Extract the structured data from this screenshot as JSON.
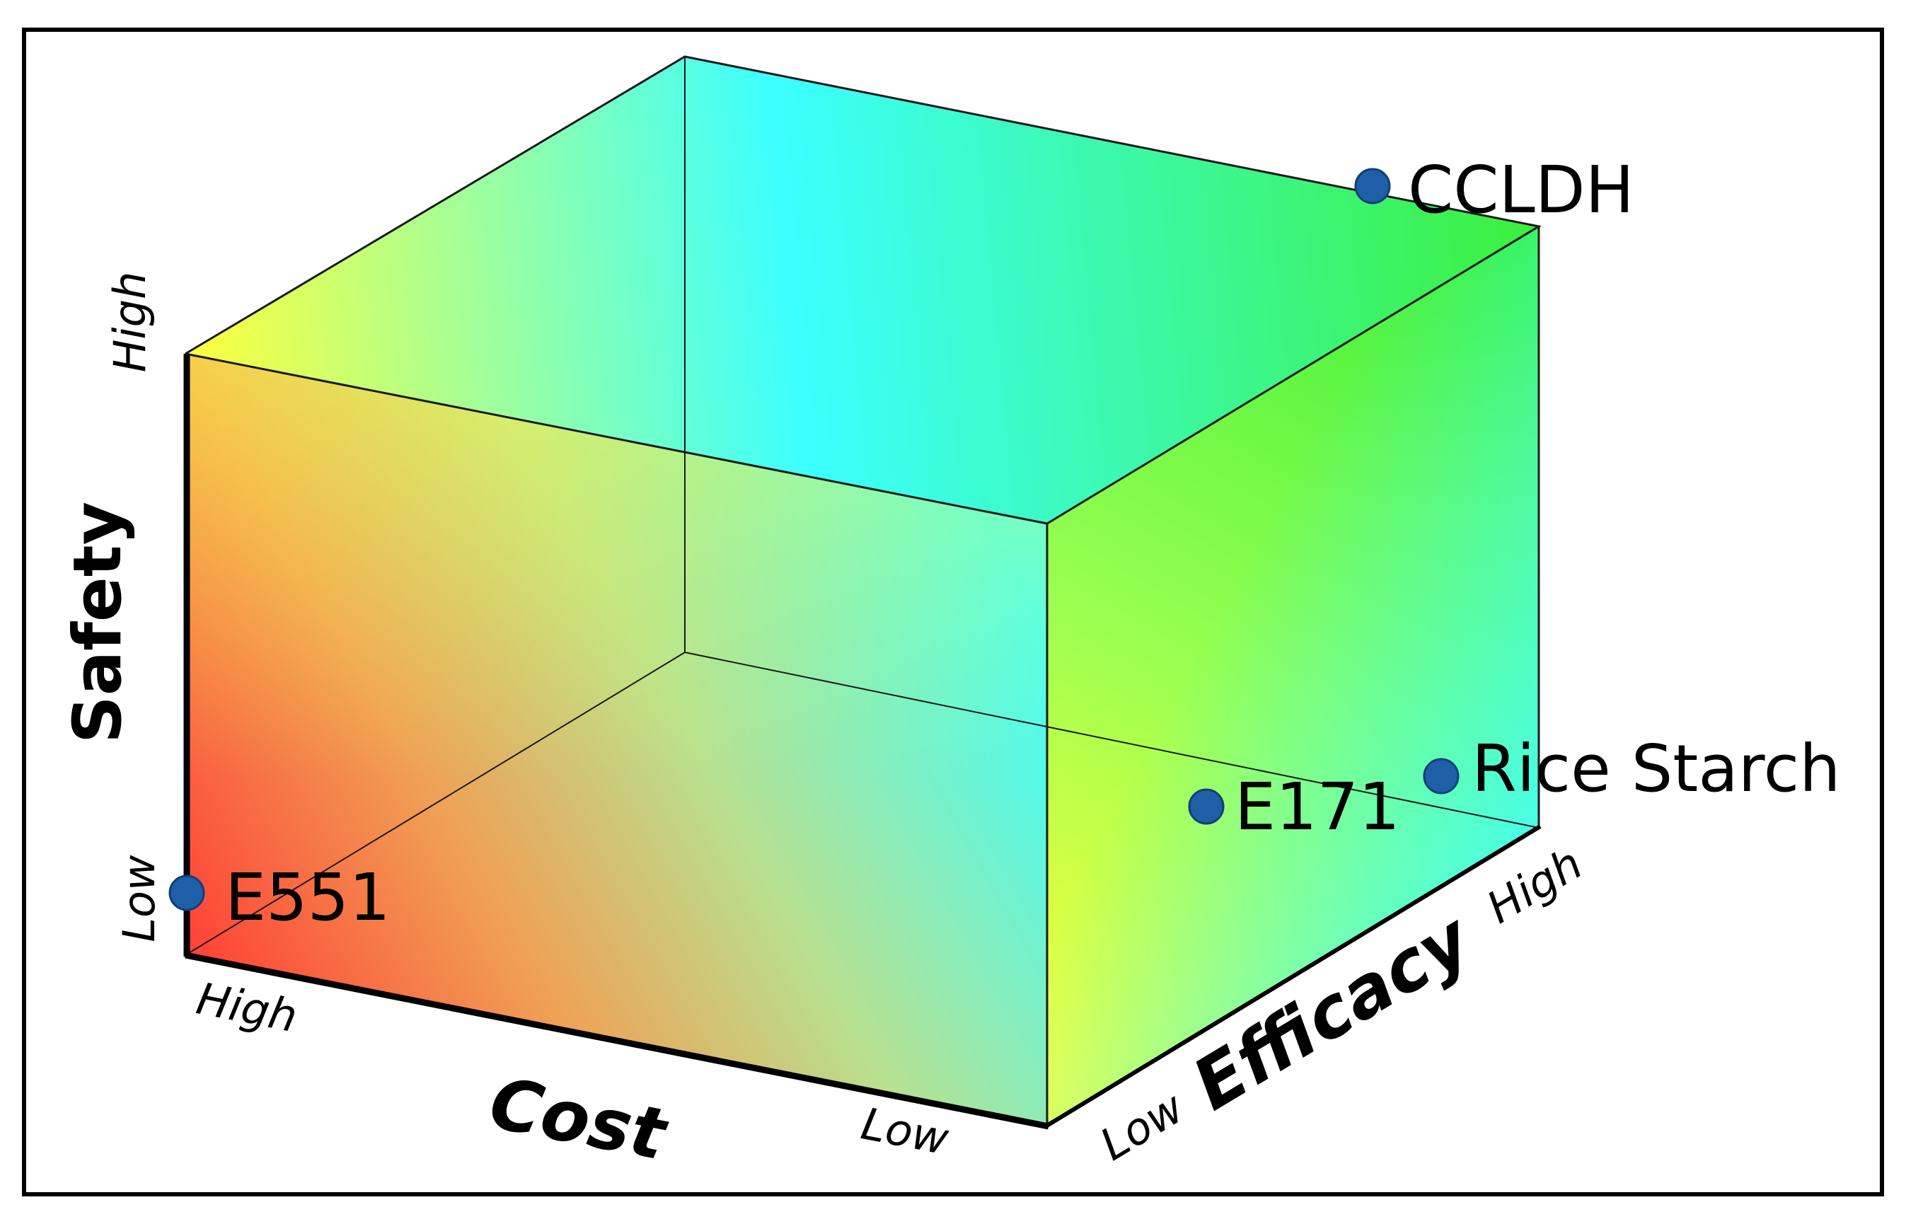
{
  "diagram": {
    "axes": {
      "safety": {
        "title": "Safety",
        "low_label": "Low",
        "high_label": "High"
      },
      "cost": {
        "title": "Cost",
        "low_label": "Low",
        "high_label": "High"
      },
      "efficacy": {
        "title": "Efficacy",
        "low_label": "Low",
        "high_label": "High"
      }
    },
    "points": [
      {
        "name": "CCLDH",
        "label": "CCLDH"
      },
      {
        "name": "Rice Starch",
        "label": "Rice Starch"
      },
      {
        "name": "E171",
        "label": "E171"
      },
      {
        "name": "E551",
        "label": "E551"
      }
    ],
    "colors": {
      "frame": "#000000",
      "point": "#1f5fa8",
      "red": "#ff4036",
      "orange": "#f9a43e",
      "yellow": "#ffff3c",
      "green": "#3cf03c",
      "cyan": "#3cffff"
    }
  }
}
